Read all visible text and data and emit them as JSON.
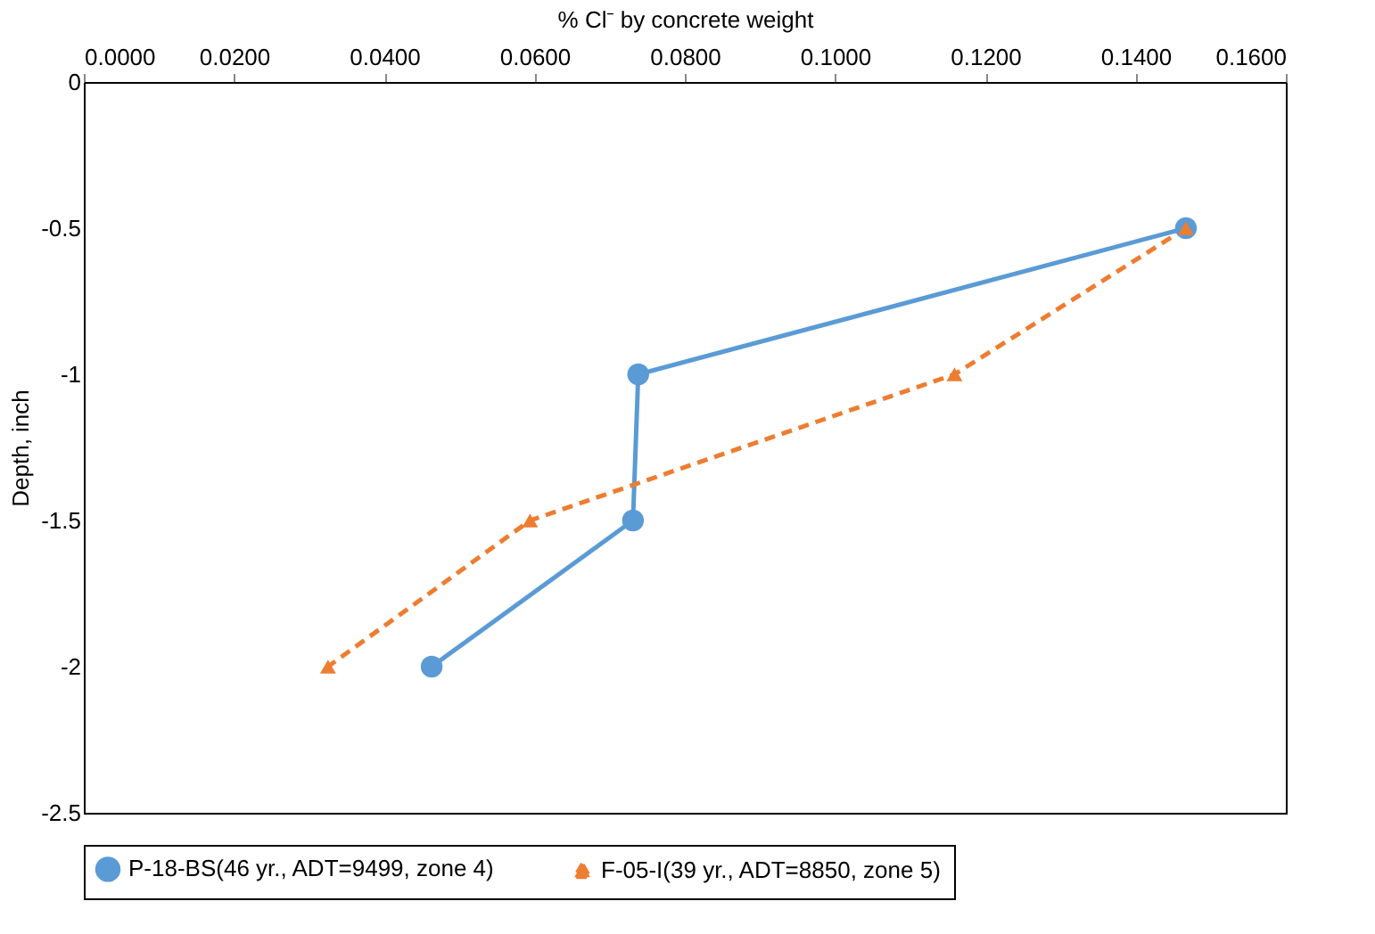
{
  "chart_data": {
    "type": "line",
    "xlabel": "% Cl⁻ by concrete weight",
    "ylabel": "Depth, inch",
    "xlim": [
      0,
      0.16
    ],
    "xticks": [
      {
        "value": 0,
        "label": "0.0000"
      },
      {
        "value": 0.02,
        "label": "0.0200"
      },
      {
        "value": 0.04,
        "label": "0.0400"
      },
      {
        "value": 0.06,
        "label": "0.0600"
      },
      {
        "value": 0.08,
        "label": "0.0800"
      },
      {
        "value": 0.1,
        "label": "0.1000"
      },
      {
        "value": 0.12,
        "label": "0.1200"
      },
      {
        "value": 0.14,
        "label": "0.1400"
      },
      {
        "value": 0.16,
        "label": "0.1600"
      }
    ],
    "ylim": [
      -2.5,
      0
    ],
    "yticks": [
      -2.5,
      -2,
      -1.5,
      -1,
      -0.5,
      0
    ],
    "grid": false,
    "legend": "bottom",
    "series": [
      {
        "name": "P-18-BS(46 yr., ADT=9499, zone 4)",
        "color": "#5b9bd5",
        "marker": "circle",
        "line_style": "solid",
        "x": [
          0.1467,
          0.0738,
          0.0731,
          0.0463
        ],
        "values": [
          -0.5,
          -1,
          -1.5,
          -2
        ]
      },
      {
        "name": "F-05-I(39 yr., ADT=8850, zone 5)",
        "color": "#ed7d31",
        "marker": "triangle",
        "line_style": "dashed",
        "x": [
          0.1467,
          0.1159,
          0.0594,
          0.0325
        ],
        "values": [
          -0.5,
          -1,
          -1.5,
          -2
        ]
      }
    ]
  }
}
